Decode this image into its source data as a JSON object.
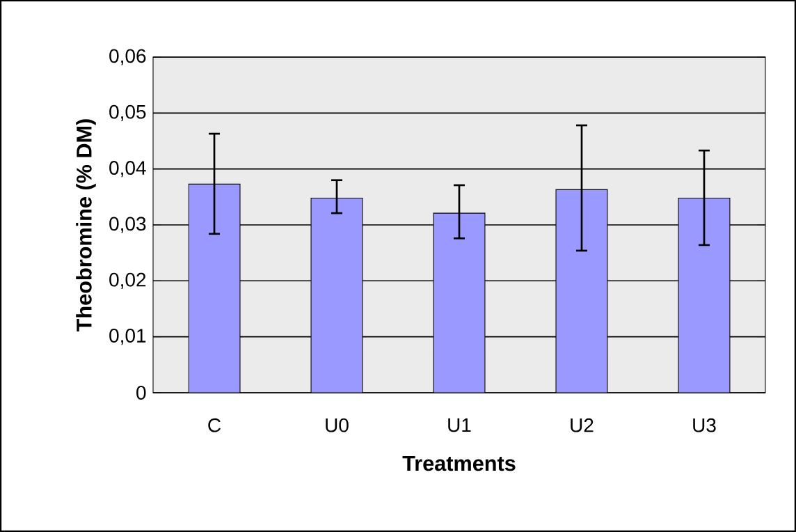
{
  "chart_data": {
    "type": "bar",
    "xlabel": "Treatments",
    "ylabel": "Theobromine (% DM)",
    "categories": [
      "C",
      "U0",
      "U1",
      "U2",
      "U3"
    ],
    "values": [
      0.0373,
      0.0348,
      0.0321,
      0.0363,
      0.0348
    ],
    "errors": [
      [
        0.0284,
        0.0463
      ],
      [
        0.0321,
        0.038
      ],
      [
        0.0276,
        0.0371
      ],
      [
        0.0254,
        0.0478
      ],
      [
        0.0264,
        0.0433
      ]
    ],
    "color": "#9999ff",
    "ylim": [
      0,
      0.06
    ],
    "yticks": [
      {
        "value": 0,
        "label": "0"
      },
      {
        "value": 0.01,
        "label": "0,01"
      },
      {
        "value": 0.02,
        "label": "0,02"
      },
      {
        "value": 0.03,
        "label": "0,03"
      },
      {
        "value": 0.04,
        "label": "0,04"
      },
      {
        "value": 0.05,
        "label": "0,05"
      },
      {
        "value": 0.06,
        "label": "0,06"
      }
    ],
    "grid": "y"
  }
}
